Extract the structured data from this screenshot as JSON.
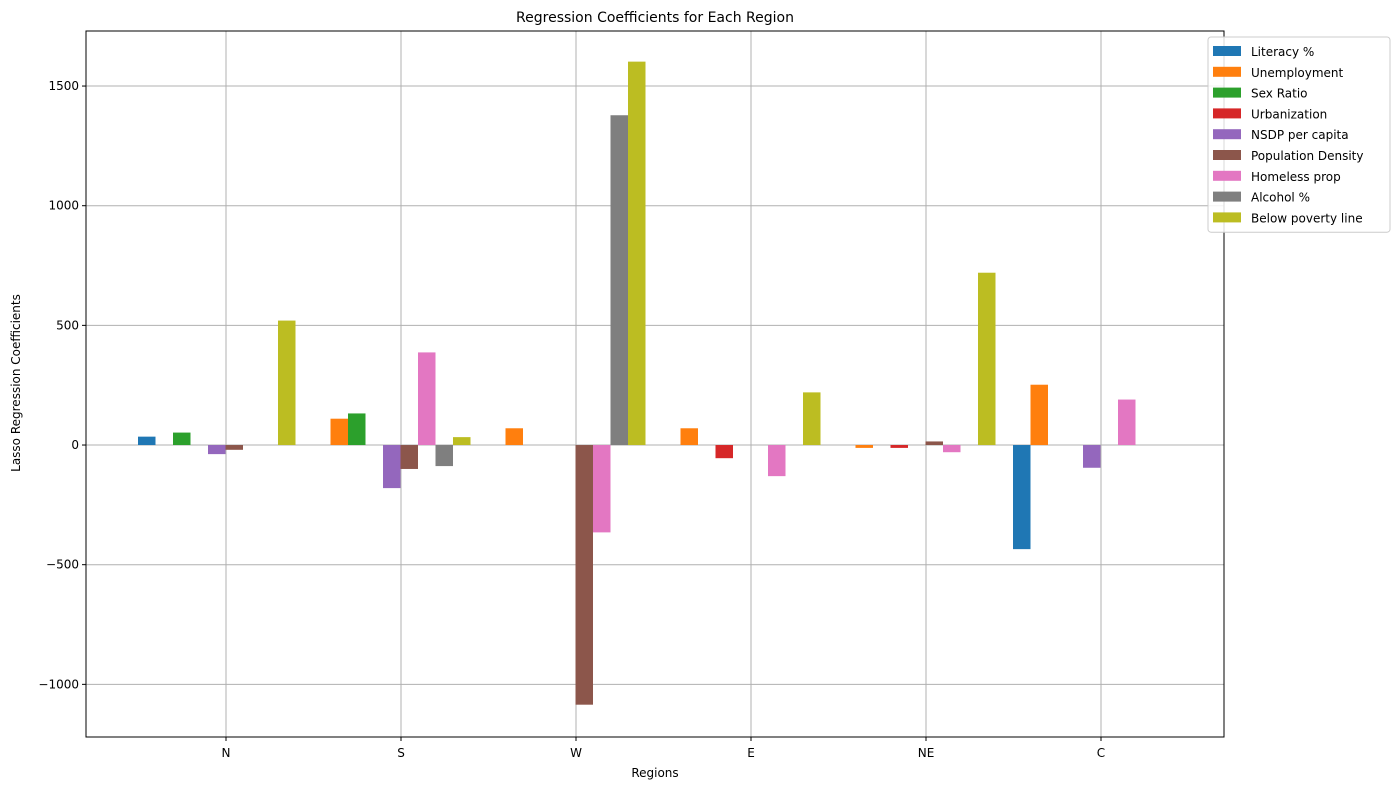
{
  "chart_data": {
    "type": "bar",
    "title": "Regression Coefficients for Each Region",
    "xlabel": "Regions",
    "ylabel": "Lasso Regression Coefficients",
    "categories": [
      "N",
      "S",
      "W",
      "E",
      "NE",
      "C"
    ],
    "ylim": [
      -1220,
      1730
    ],
    "yticks": [
      -1000,
      -500,
      0,
      500,
      1000,
      1500
    ],
    "ytick_labels": [
      "−1000",
      "−500",
      "0",
      "500",
      "1000",
      "1500"
    ],
    "grid": true,
    "legend_position": "upper-right-outside",
    "series": [
      {
        "name": "Literacy %",
        "color": "#1f77b4",
        "values": [
          35,
          0,
          0,
          0,
          0,
          -435
        ]
      },
      {
        "name": "Unemployment",
        "color": "#ff7f0e",
        "values": [
          0,
          110,
          70,
          70,
          -12,
          252
        ]
      },
      {
        "name": "Sex Ratio",
        "color": "#2ca02c",
        "values": [
          52,
          132,
          0,
          0,
          0,
          0
        ]
      },
      {
        "name": "Urbanization",
        "color": "#d62728",
        "values": [
          0,
          0,
          0,
          -55,
          -12,
          0
        ]
      },
      {
        "name": "NSDP per capita",
        "color": "#9467bd",
        "values": [
          -38,
          -180,
          0,
          0,
          0,
          -95
        ]
      },
      {
        "name": "Population Density",
        "color": "#8c564b",
        "values": [
          -20,
          -100,
          -1085,
          0,
          15,
          0
        ]
      },
      {
        "name": "Homeless prop",
        "color": "#e377c2",
        "values": [
          0,
          387,
          -365,
          -130,
          -30,
          190
        ]
      },
      {
        "name": "Alcohol %",
        "color": "#7f7f7f",
        "values": [
          0,
          -88,
          1378,
          0,
          0,
          0
        ]
      },
      {
        "name": "Below poverty line",
        "color": "#bcbd22",
        "values": [
          520,
          33,
          1602,
          220,
          720,
          0
        ]
      }
    ]
  }
}
